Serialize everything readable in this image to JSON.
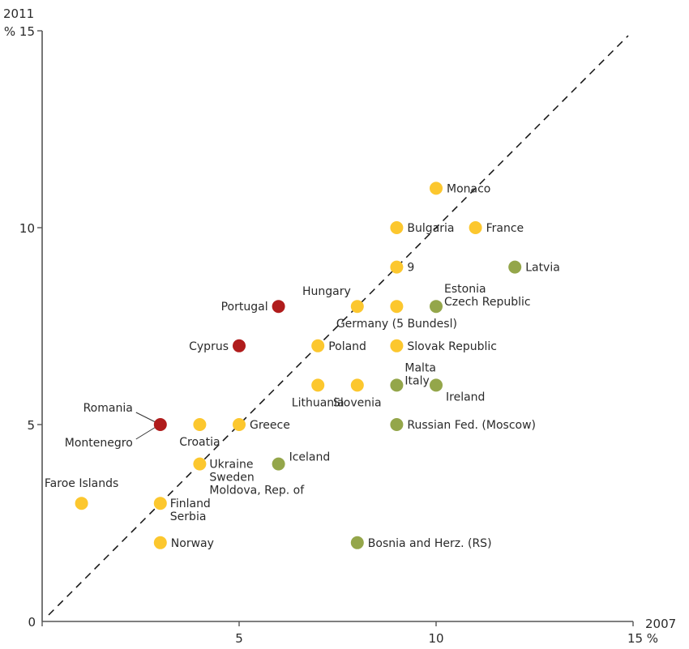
{
  "chart_data": {
    "type": "scatter",
    "title": "",
    "xlabel": "2007",
    "ylabel": "2011",
    "x_unit": "%",
    "y_unit": "%",
    "xlim": [
      0,
      15
    ],
    "ylim": [
      0,
      15
    ],
    "x_ticks": [
      {
        "value": 0,
        "label": "0"
      },
      {
        "value": 5,
        "label": "5"
      },
      {
        "value": 10,
        "label": "10"
      },
      {
        "value": 15,
        "label": "15 %"
      }
    ],
    "y_ticks": [
      {
        "value": 5,
        "label": "5"
      },
      {
        "value": 10,
        "label": "10"
      },
      {
        "value": 15,
        "label": "% 15"
      }
    ],
    "grid": false,
    "reference_line": {
      "type": "diagonal",
      "style": "dashed",
      "from": [
        0,
        0
      ],
      "to": [
        15,
        15
      ]
    },
    "colors": {
      "yellow": "#fcc72e",
      "green": "#94a64a",
      "red": "#b01c1c",
      "axis": "#555555"
    },
    "points": [
      {
        "x": 10,
        "y": 11,
        "color": "yellow",
        "labels": [
          "Monaco"
        ],
        "label_pos": "right"
      },
      {
        "x": 9,
        "y": 10,
        "color": "yellow",
        "labels": [
          "Bulgaria"
        ],
        "label_pos": "right"
      },
      {
        "x": 11,
        "y": 10,
        "color": "yellow",
        "labels": [
          "France"
        ],
        "label_pos": "right"
      },
      {
        "x": 9,
        "y": 9,
        "color": "yellow",
        "labels": [
          "9"
        ],
        "label_pos": "right"
      },
      {
        "x": 12,
        "y": 9,
        "color": "green",
        "labels": [
          "Latvia"
        ],
        "label_pos": "right"
      },
      {
        "x": 6,
        "y": 8,
        "color": "red",
        "labels": [
          "Portugal"
        ],
        "label_pos": "left"
      },
      {
        "x": 8,
        "y": 8,
        "color": "yellow",
        "labels": [
          "Hungary"
        ],
        "label_pos": "above-left"
      },
      {
        "x": 9,
        "y": 8,
        "color": "yellow",
        "labels": [
          "Germany (5 Bundesl)"
        ],
        "label_pos": "below"
      },
      {
        "x": 10,
        "y": 8,
        "color": "green",
        "labels": [
          "Estonia",
          "Czech Republic"
        ],
        "label_pos": "right-stacked-up"
      },
      {
        "x": 5,
        "y": 7,
        "color": "red",
        "labels": [
          "Cyprus"
        ],
        "label_pos": "left"
      },
      {
        "x": 7,
        "y": 7,
        "color": "yellow",
        "labels": [
          "Poland"
        ],
        "label_pos": "right"
      },
      {
        "x": 9,
        "y": 7,
        "color": "yellow",
        "labels": [
          "Slovak Republic"
        ],
        "label_pos": "right"
      },
      {
        "x": 7,
        "y": 6,
        "color": "yellow",
        "labels": [
          "Lithuania"
        ],
        "label_pos": "below"
      },
      {
        "x": 8,
        "y": 6,
        "color": "yellow",
        "labels": [
          "Slovenia"
        ],
        "label_pos": "below"
      },
      {
        "x": 9,
        "y": 6,
        "color": "green",
        "labels": [
          "Malta",
          "Italy"
        ],
        "label_pos": "right-stacked-up"
      },
      {
        "x": 10,
        "y": 6,
        "color": "green",
        "labels": [
          "Ireland"
        ],
        "label_pos": "below-right"
      },
      {
        "x": 3,
        "y": 5,
        "color": "red",
        "labels": [
          "Romania",
          "Montenegro"
        ],
        "label_pos": "leader-left"
      },
      {
        "x": 4,
        "y": 5,
        "color": "yellow",
        "labels": [
          "Croatia"
        ],
        "label_pos": "below"
      },
      {
        "x": 5,
        "y": 5,
        "color": "yellow",
        "labels": [
          "Greece"
        ],
        "label_pos": "right"
      },
      {
        "x": 9,
        "y": 5,
        "color": "green",
        "labels": [
          "Russian Fed. (Moscow)"
        ],
        "label_pos": "right"
      },
      {
        "x": 4,
        "y": 4,
        "color": "yellow",
        "labels": [
          "Ukraine",
          "Sweden",
          "Moldova, Rep. of"
        ],
        "label_pos": "right-stacked-down"
      },
      {
        "x": 6,
        "y": 4,
        "color": "green",
        "labels": [
          "Iceland"
        ],
        "label_pos": "above-right"
      },
      {
        "x": 1,
        "y": 3,
        "color": "yellow",
        "labels": [
          "Faroe Islands"
        ],
        "label_pos": "above"
      },
      {
        "x": 3,
        "y": 3,
        "color": "yellow",
        "labels": [
          "Finland",
          "Serbia"
        ],
        "label_pos": "right-stacked-down"
      },
      {
        "x": 3,
        "y": 2,
        "color": "yellow",
        "labels": [
          "Norway"
        ],
        "label_pos": "right"
      },
      {
        "x": 8,
        "y": 2,
        "color": "green",
        "labels": [
          "Bosnia and Herz. (RS)"
        ],
        "label_pos": "right"
      }
    ]
  }
}
